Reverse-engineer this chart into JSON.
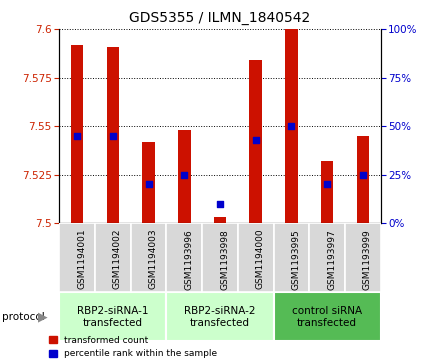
{
  "title": "GDS5355 / ILMN_1840542",
  "samples": [
    "GSM1194001",
    "GSM1194002",
    "GSM1194003",
    "GSM1193996",
    "GSM1193998",
    "GSM1194000",
    "GSM1193995",
    "GSM1193997",
    "GSM1193999"
  ],
  "red_values": [
    7.592,
    7.591,
    7.542,
    7.548,
    7.503,
    7.584,
    7.6,
    7.532,
    7.545
  ],
  "blue_values": [
    45,
    45,
    20,
    25,
    10,
    43,
    50,
    20,
    25
  ],
  "ylim_left": [
    7.5,
    7.6
  ],
  "ylim_right": [
    0,
    100
  ],
  "yticks_left": [
    7.5,
    7.525,
    7.55,
    7.575,
    7.6
  ],
  "yticks_right": [
    0,
    25,
    50,
    75,
    100
  ],
  "groups": [
    {
      "label": "RBP2-siRNA-1\ntransfected",
      "indices": [
        0,
        1,
        2
      ],
      "color": "#ccffcc"
    },
    {
      "label": "RBP2-siRNA-2\ntransfected",
      "indices": [
        3,
        4,
        5
      ],
      "color": "#ccffcc"
    },
    {
      "label": "control siRNA\ntransfected",
      "indices": [
        6,
        7,
        8
      ],
      "color": "#55bb55"
    }
  ],
  "bar_color": "#cc1100",
  "dot_color": "#0000cc",
  "bar_width": 0.35,
  "base_value": 7.5,
  "bg_color": "#ffffff",
  "tick_label_fontsize": 6.5,
  "group_label_fontsize": 7.5,
  "title_fontsize": 10
}
